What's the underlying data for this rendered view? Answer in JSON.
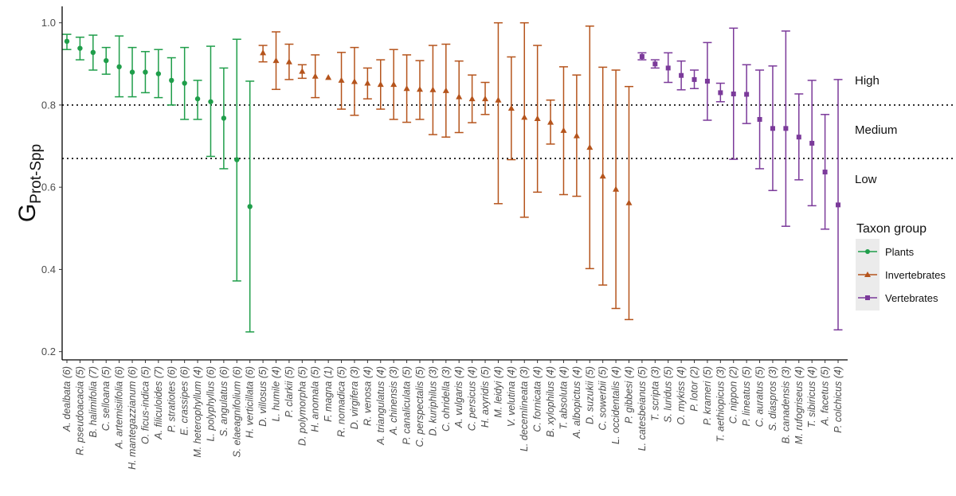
{
  "chart_data": {
    "type": "scatter",
    "title": "",
    "xlabel": "",
    "ylabel": {
      "main": "G",
      "subscript": "Prot-Spp"
    },
    "ylim": [
      0.18,
      1.04
    ],
    "yticks": [
      "0.2",
      "0.4",
      "0.6",
      "0.8",
      "1.0"
    ],
    "thresholds": [
      0.8,
      0.67
    ],
    "zones": [
      "High",
      "Medium",
      "Low"
    ],
    "legend": {
      "title": "Taxon group",
      "entries": [
        "Plants",
        "Invertebrates",
        "Vertebrates"
      ],
      "position": "right"
    },
    "colors": {
      "Plants": "#1f9e4a",
      "Invertebrates": "#b5541c",
      "Vertebrates": "#7b3a9a"
    },
    "points": [
      {
        "label": "A. dealbata (6)",
        "group": "Plants",
        "value": 0.955,
        "lo": 0.935,
        "hi": 0.972
      },
      {
        "label": "R. pseudoacacia (5)",
        "group": "Plants",
        "value": 0.938,
        "lo": 0.91,
        "hi": 0.965
      },
      {
        "label": "B. halimifolia (7)",
        "group": "Plants",
        "value": 0.928,
        "lo": 0.885,
        "hi": 0.97
      },
      {
        "label": "C. selloana (5)",
        "group": "Plants",
        "value": 0.908,
        "lo": 0.875,
        "hi": 0.94
      },
      {
        "label": "A. artemisiifolia (6)",
        "group": "Plants",
        "value": 0.893,
        "lo": 0.82,
        "hi": 0.968
      },
      {
        "label": "H. mantegazzianum (6)",
        "group": "Plants",
        "value": 0.88,
        "lo": 0.82,
        "hi": 0.94
      },
      {
        "label": "O. ficus-indica (5)",
        "group": "Plants",
        "value": 0.88,
        "lo": 0.83,
        "hi": 0.93
      },
      {
        "label": "A. filiculoides (7)",
        "group": "Plants",
        "value": 0.876,
        "lo": 0.818,
        "hi": 0.935
      },
      {
        "label": "P. stratiotes (6)",
        "group": "Plants",
        "value": 0.86,
        "lo": 0.8,
        "hi": 0.915
      },
      {
        "label": "E. crassipes (6)",
        "group": "Plants",
        "value": 0.853,
        "lo": 0.765,
        "hi": 0.94
      },
      {
        "label": "M. heterophyllum (4)",
        "group": "Plants",
        "value": 0.815,
        "lo": 0.765,
        "hi": 0.86
      },
      {
        "label": "L. polyphyllus (6)",
        "group": "Plants",
        "value": 0.808,
        "lo": 0.675,
        "hi": 0.943
      },
      {
        "label": "S. angulatus (6)",
        "group": "Plants",
        "value": 0.768,
        "lo": 0.645,
        "hi": 0.89
      },
      {
        "label": "S. elaeagnifolium (6)",
        "group": "Plants",
        "value": 0.667,
        "lo": 0.372,
        "hi": 0.96
      },
      {
        "label": "H. verticillata (6)",
        "group": "Plants",
        "value": 0.553,
        "lo": 0.248,
        "hi": 0.858
      },
      {
        "label": "D. villosus (5)",
        "group": "Invertebrates",
        "value": 0.927,
        "lo": 0.905,
        "hi": 0.945
      },
      {
        "label": "L. humile (4)",
        "group": "Invertebrates",
        "value": 0.908,
        "lo": 0.838,
        "hi": 0.978
      },
      {
        "label": "P. clarkii (5)",
        "group": "Invertebrates",
        "value": 0.905,
        "lo": 0.862,
        "hi": 0.948
      },
      {
        "label": "D. polymorpha (5)",
        "group": "Invertebrates",
        "value": 0.882,
        "lo": 0.865,
        "hi": 0.898
      },
      {
        "label": "H. anomala (5)",
        "group": "Invertebrates",
        "value": 0.87,
        "lo": 0.818,
        "hi": 0.922
      },
      {
        "label": "F. magna (1)",
        "group": "Invertebrates",
        "value": 0.867,
        "lo": null,
        "hi": null
      },
      {
        "label": "R. nomadica (5)",
        "group": "Invertebrates",
        "value": 0.86,
        "lo": 0.79,
        "hi": 0.928
      },
      {
        "label": "D. virgifera (3)",
        "group": "Invertebrates",
        "value": 0.857,
        "lo": 0.775,
        "hi": 0.94
      },
      {
        "label": "R. venosa (4)",
        "group": "Invertebrates",
        "value": 0.853,
        "lo": 0.815,
        "hi": 0.89
      },
      {
        "label": "A. triangulatus (4)",
        "group": "Invertebrates",
        "value": 0.85,
        "lo": 0.79,
        "hi": 0.91
      },
      {
        "label": "A. chinensis (3)",
        "group": "Invertebrates",
        "value": 0.85,
        "lo": 0.765,
        "hi": 0.935
      },
      {
        "label": "P. canaliculata (5)",
        "group": "Invertebrates",
        "value": 0.84,
        "lo": 0.758,
        "hi": 0.922
      },
      {
        "label": "C. perspectalis (5)",
        "group": "Invertebrates",
        "value": 0.838,
        "lo": 0.765,
        "hi": 0.908
      },
      {
        "label": "D. kuriphilus (3)",
        "group": "Invertebrates",
        "value": 0.837,
        "lo": 0.728,
        "hi": 0.945
      },
      {
        "label": "C. ohridella (3)",
        "group": "Invertebrates",
        "value": 0.835,
        "lo": 0.722,
        "hi": 0.948
      },
      {
        "label": "A. vulgaris (4)",
        "group": "Invertebrates",
        "value": 0.82,
        "lo": 0.733,
        "hi": 0.907
      },
      {
        "label": "C. persicus (4)",
        "group": "Invertebrates",
        "value": 0.815,
        "lo": 0.757,
        "hi": 0.873
      },
      {
        "label": "H. axyridis (5)",
        "group": "Invertebrates",
        "value": 0.815,
        "lo": 0.777,
        "hi": 0.855
      },
      {
        "label": "M. leidyi (4)",
        "group": "Invertebrates",
        "value": 0.812,
        "lo": 0.56,
        "hi": 1.0
      },
      {
        "label": "V. velutina (4)",
        "group": "Invertebrates",
        "value": 0.792,
        "lo": 0.667,
        "hi": 0.917
      },
      {
        "label": "L. decemlineata (3)",
        "group": "Invertebrates",
        "value": 0.77,
        "lo": 0.527,
        "hi": 1.0
      },
      {
        "label": "C. fornicata (4)",
        "group": "Invertebrates",
        "value": 0.767,
        "lo": 0.588,
        "hi": 0.945
      },
      {
        "label": "B. xylophilus (4)",
        "group": "Invertebrates",
        "value": 0.758,
        "lo": 0.705,
        "hi": 0.812
      },
      {
        "label": "T. absoluta (4)",
        "group": "Invertebrates",
        "value": 0.738,
        "lo": 0.582,
        "hi": 0.893
      },
      {
        "label": "A. albopictus (4)",
        "group": "Invertebrates",
        "value": 0.725,
        "lo": 0.578,
        "hi": 0.873
      },
      {
        "label": "D. suzukii (5)",
        "group": "Invertebrates",
        "value": 0.697,
        "lo": 0.402,
        "hi": 0.992
      },
      {
        "label": "C. sowerbii (5)",
        "group": "Invertebrates",
        "value": 0.627,
        "lo": 0.362,
        "hi": 0.892
      },
      {
        "label": "L. occidentalis (4)",
        "group": "Invertebrates",
        "value": 0.595,
        "lo": 0.305,
        "hi": 0.885
      },
      {
        "label": "P. gibbesi (4)",
        "group": "Invertebrates",
        "value": 0.562,
        "lo": 0.278,
        "hi": 0.845
      },
      {
        "label": "L. catesbeianus (5)",
        "group": "Vertebrates",
        "value": 0.918,
        "lo": 0.91,
        "hi": 0.927
      },
      {
        "label": "T. scripta (3)",
        "group": "Vertebrates",
        "value": 0.9,
        "lo": 0.89,
        "hi": 0.91
      },
      {
        "label": "S. luridus (5)",
        "group": "Vertebrates",
        "value": 0.89,
        "lo": 0.855,
        "hi": 0.927
      },
      {
        "label": "O. mykiss (4)",
        "group": "Vertebrates",
        "value": 0.872,
        "lo": 0.837,
        "hi": 0.907
      },
      {
        "label": "P. lotor (2)",
        "group": "Vertebrates",
        "value": 0.862,
        "lo": 0.84,
        "hi": 0.885
      },
      {
        "label": "P. krameri (5)",
        "group": "Vertebrates",
        "value": 0.858,
        "lo": 0.763,
        "hi": 0.952
      },
      {
        "label": "T. aethiopicus (3)",
        "group": "Vertebrates",
        "value": 0.83,
        "lo": 0.808,
        "hi": 0.853
      },
      {
        "label": "C. nippon (2)",
        "group": "Vertebrates",
        "value": 0.827,
        "lo": 0.668,
        "hi": 0.987
      },
      {
        "label": "P. lineatus (5)",
        "group": "Vertebrates",
        "value": 0.826,
        "lo": 0.755,
        "hi": 0.898
      },
      {
        "label": "C. auratus (5)",
        "group": "Vertebrates",
        "value": 0.765,
        "lo": 0.645,
        "hi": 0.885
      },
      {
        "label": "S. diaspros (3)",
        "group": "Vertebrates",
        "value": 0.743,
        "lo": 0.592,
        "hi": 0.895
      },
      {
        "label": "B. canadensis (3)",
        "group": "Vertebrates",
        "value": 0.743,
        "lo": 0.505,
        "hi": 0.98
      },
      {
        "label": "M. rufogriseus (4)",
        "group": "Vertebrates",
        "value": 0.722,
        "lo": 0.618,
        "hi": 0.827
      },
      {
        "label": "T. sibiricus (4)",
        "group": "Vertebrates",
        "value": 0.707,
        "lo": 0.555,
        "hi": 0.86
      },
      {
        "label": "A. facetus (5)",
        "group": "Vertebrates",
        "value": 0.637,
        "lo": 0.498,
        "hi": 0.777
      },
      {
        "label": "P. colchicus (4)",
        "group": "Vertebrates",
        "value": 0.557,
        "lo": 0.253,
        "hi": 0.862
      }
    ]
  }
}
